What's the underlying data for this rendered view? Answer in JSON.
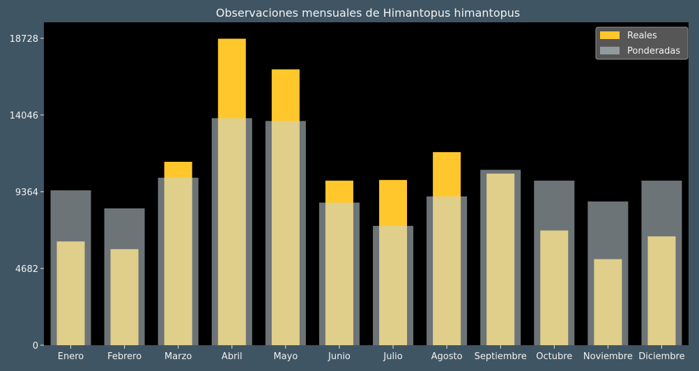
{
  "chart_data": {
    "type": "bar",
    "title": "Observaciones mensuales de Himantopus himantopus",
    "xlabel": "",
    "ylabel": "",
    "categories": [
      "Enero",
      "Febrero",
      "Marzo",
      "Abril",
      "Mayo",
      "Junio",
      "Julio",
      "Agosto",
      "Septiembre",
      "Octubre",
      "Noviembre",
      "Diciembre"
    ],
    "series": [
      {
        "name": "Reales",
        "color": "#ffc72c",
        "values": [
          6330,
          5860,
          11190,
          18700,
          16830,
          10040,
          10080,
          11780,
          10470,
          7000,
          5250,
          6640
        ]
      },
      {
        "name": "Ponderadas",
        "color": "#c7d3da",
        "values": [
          9450,
          8350,
          10220,
          13850,
          13680,
          8700,
          7280,
          9080,
          10700,
          10040,
          8770,
          10040
        ]
      }
    ],
    "ylim": [
      0,
      19700
    ],
    "yticks": [
      0,
      4682,
      9364,
      14046,
      18728
    ],
    "grid": false,
    "legend_position": "top-right"
  }
}
